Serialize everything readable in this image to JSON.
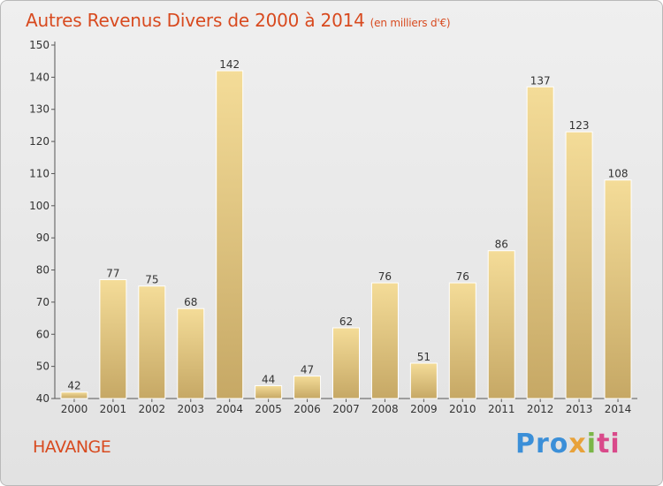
{
  "header": {
    "title": "Autres Revenus Divers de 2000 à 2014",
    "subtitle": "(en milliers d'€)"
  },
  "footer": {
    "commune": "HAVANGE",
    "brand": {
      "p1": "Pro",
      "p2": "x",
      "p3": "i",
      "p4": "ti"
    }
  },
  "colors": {
    "title": "#d84a1f",
    "bar_light": "#f4dc98",
    "bar_dark": "#c6a865",
    "axis": "#555555"
  },
  "chart_data": {
    "type": "bar",
    "title": "Autres Revenus Divers de 2000 à 2014",
    "subtitle": "(en milliers d'€)",
    "categories": [
      "2000",
      "2001",
      "2002",
      "2003",
      "2004",
      "2005",
      "2006",
      "2007",
      "2008",
      "2009",
      "2010",
      "2011",
      "2012",
      "2013",
      "2014"
    ],
    "values": [
      42,
      77,
      75,
      68,
      142,
      44,
      47,
      62,
      76,
      51,
      76,
      86,
      137,
      123,
      108
    ],
    "ylim": [
      40,
      150
    ],
    "yticks": [
      40,
      50,
      60,
      70,
      80,
      90,
      100,
      110,
      120,
      130,
      140,
      150
    ],
    "grid": false,
    "legend": "none"
  }
}
